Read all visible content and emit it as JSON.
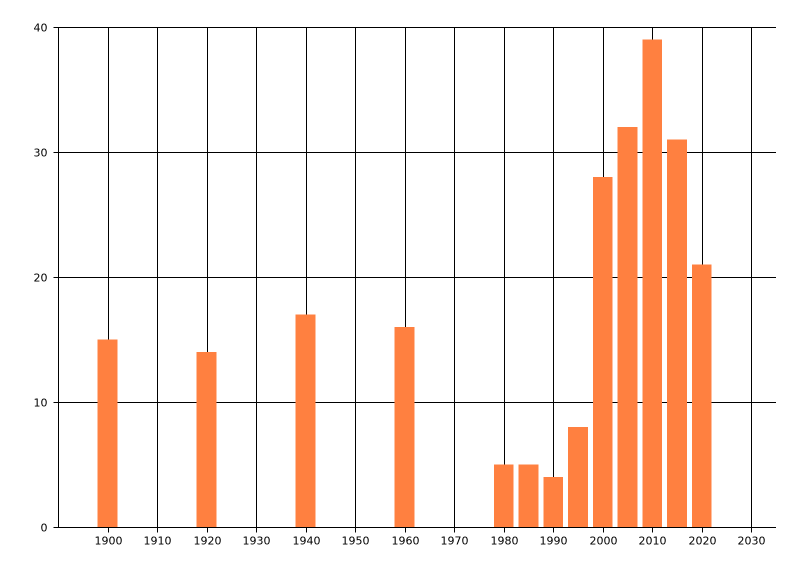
{
  "chart_data": {
    "type": "bar",
    "title": "",
    "xlabel": "",
    "ylabel": "",
    "x": [
      1900,
      1920,
      1940,
      1960,
      1980,
      1985,
      1990,
      1995,
      2000,
      2005,
      2010,
      2015,
      2020
    ],
    "values": [
      15,
      14,
      17,
      16,
      5,
      5,
      4,
      8,
      28,
      32,
      39,
      31,
      21
    ],
    "xlim": [
      1890,
      2035
    ],
    "ylim": [
      0,
      40
    ],
    "x_ticks": [
      1900,
      1910,
      1920,
      1930,
      1940,
      1950,
      1960,
      1970,
      1980,
      1990,
      2000,
      2010,
      2020,
      2030
    ],
    "y_ticks": [
      0,
      10,
      20,
      30,
      40
    ],
    "bar_width_years": 4,
    "grid": true,
    "legend": "none",
    "colors": {
      "bar": "#FF8040",
      "grid": "#000000",
      "axis": "#000000",
      "text": "#000000"
    }
  }
}
